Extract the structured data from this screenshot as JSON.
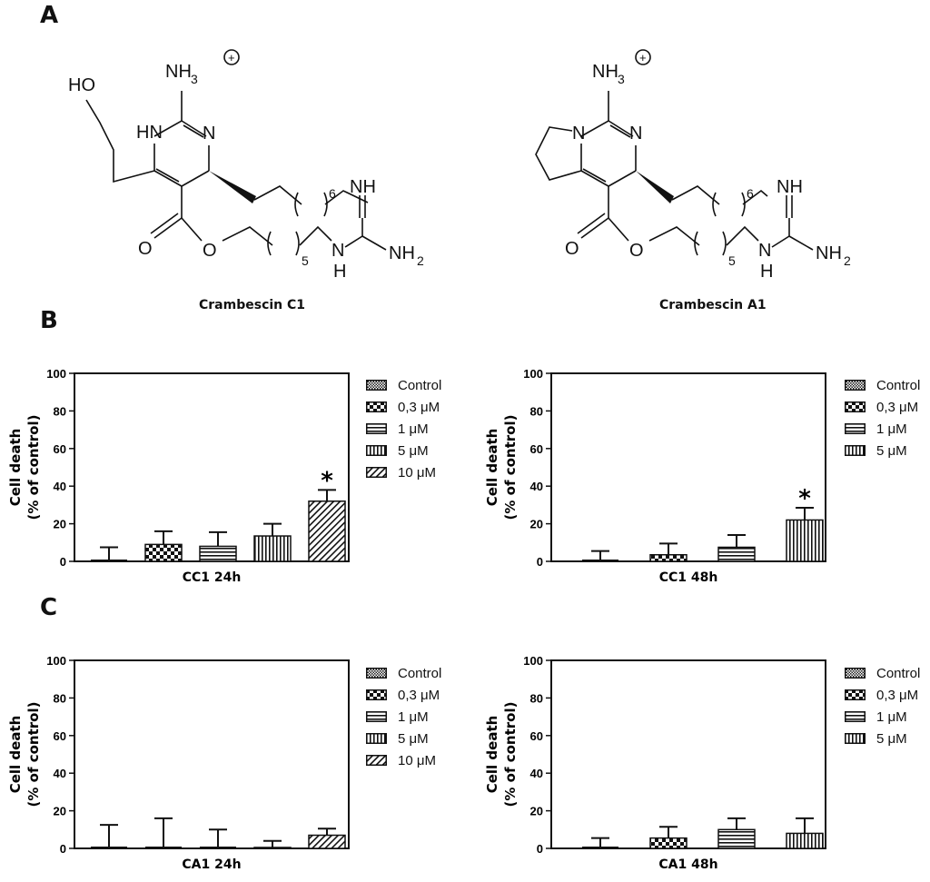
{
  "panel_labels": {
    "a": "A",
    "b": "B",
    "c": "C"
  },
  "structures": {
    "cc1": {
      "name": "Crambescin C1",
      "labels": {
        "nh3": "NH",
        "nh3_sub": "3",
        "ho": "HO",
        "hn": "HN",
        "n": "N",
        "o_carbonyl": "O",
        "o_ester": "O",
        "nh_top": "NH",
        "nh_bottom": "N",
        "h": "H",
        "nh2": "NH",
        "nh2_sub": "2",
        "sub6": "6",
        "sub5": "5",
        "charge": "+"
      }
    },
    "ca1": {
      "name": "Crambescin A1",
      "labels": {
        "nh3": "NH",
        "nh3_sub": "3",
        "n_ring": "N",
        "n": "N",
        "o_carbonyl": "O",
        "o_ester": "O",
        "nh_top": "NH",
        "nh_bottom": "N",
        "h": "H",
        "nh2": "NH",
        "nh2_sub": "2",
        "sub6": "6",
        "sub5": "5",
        "charge": "+"
      }
    }
  },
  "chart_data": [
    {
      "type": "bar",
      "id": "cc1-24h",
      "title": "",
      "xlabel": "CC1 24h",
      "ylabel_line1": "Cell death",
      "ylabel_line2": "(% of control)",
      "ylim": [
        0,
        100
      ],
      "yticks": [
        "0",
        "20",
        "40",
        "60",
        "80",
        "100"
      ],
      "categories": [
        "Control",
        "0,3 μM",
        "1 μM",
        "5 μM",
        "10 μM"
      ],
      "values": [
        0,
        9,
        8,
        13.5,
        32
      ],
      "errors": [
        7.5,
        7,
        7.5,
        6.5,
        6
      ],
      "significance": [
        "",
        "",
        "",
        "",
        "*"
      ],
      "legend": [
        "Control",
        "0,3 μM",
        "1 μM",
        "5 μM",
        "10 μM"
      ]
    },
    {
      "type": "bar",
      "id": "cc1-48h",
      "title": "",
      "xlabel": "CC1 48h",
      "ylabel_line1": "Cell death",
      "ylabel_line2": "(% of control)",
      "ylim": [
        0,
        100
      ],
      "yticks": [
        "0",
        "20",
        "40",
        "60",
        "80",
        "100"
      ],
      "categories": [
        "Control",
        "0,3 μM",
        "1 μM",
        "5 μM"
      ],
      "values": [
        0,
        3.5,
        7.5,
        22
      ],
      "errors": [
        5.5,
        6,
        6.5,
        6.5
      ],
      "significance": [
        "",
        "",
        "",
        "*"
      ],
      "legend": [
        "Control",
        "0,3 μM",
        "1 μM",
        "5 μM"
      ]
    },
    {
      "type": "bar",
      "id": "ca1-24h",
      "title": "",
      "xlabel": "CA1 24h",
      "ylabel_line1": "Cell death",
      "ylabel_line2": "(% of control)",
      "ylim": [
        0,
        100
      ],
      "yticks": [
        "0",
        "20",
        "40",
        "60",
        "80",
        "100"
      ],
      "categories": [
        "Control",
        "0,3 μM",
        "1 μM",
        "5 μM",
        "10 μM"
      ],
      "values": [
        0,
        0,
        0,
        0.5,
        7
      ],
      "errors": [
        12.5,
        16,
        10,
        3.5,
        3.5
      ],
      "significance": [
        "",
        "",
        "",
        "",
        ""
      ],
      "legend": [
        "Control",
        "0,3 μM",
        "1 μM",
        "5 μM",
        "10 μM"
      ]
    },
    {
      "type": "bar",
      "id": "ca1-48h",
      "title": "",
      "xlabel": "CA1 48h",
      "ylabel_line1": "Cell death",
      "ylabel_line2": "(% of control)",
      "ylim": [
        0,
        100
      ],
      "yticks": [
        "0",
        "20",
        "40",
        "60",
        "80",
        "100"
      ],
      "categories": [
        "Control",
        "0,3 μM",
        "1 μM",
        "5 μM"
      ],
      "values": [
        0,
        5.5,
        10,
        8
      ],
      "errors": [
        5.5,
        6,
        6,
        8
      ],
      "significance": [
        "",
        "",
        "",
        ""
      ],
      "legend": [
        "Control",
        "0,3 μM",
        "1 μM",
        "5 μM"
      ]
    }
  ]
}
